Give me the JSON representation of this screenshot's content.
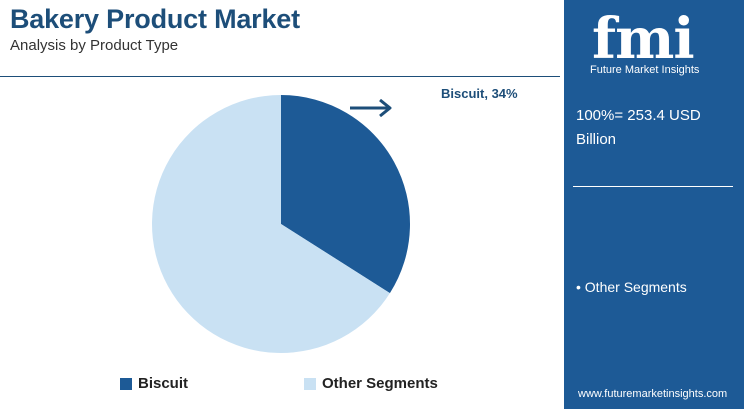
{
  "header": {
    "title": "Bakery Product Market",
    "subtitle": "Analysis by Product Type"
  },
  "chart_data": {
    "type": "pie",
    "categories": [
      "Biscuit",
      "Other Segments"
    ],
    "values": [
      34,
      66
    ],
    "colors": [
      "#1d5a96",
      "#c9e1f3"
    ],
    "label": "Biscuit, 34%",
    "legend": [
      "Biscuit",
      "Other Segments"
    ],
    "legend_placement": "bottom"
  },
  "panel": {
    "logo": "fmi",
    "logo_subtitle": "Future Market Insights",
    "total": "100%= 253.4 USD Billion",
    "items": [
      "• Other Segments"
    ],
    "url": "www.futuremarketinsights.com"
  },
  "colors": {
    "primary": "#1d5a96",
    "light": "#c9e1f3",
    "title": "#1d4e79"
  }
}
